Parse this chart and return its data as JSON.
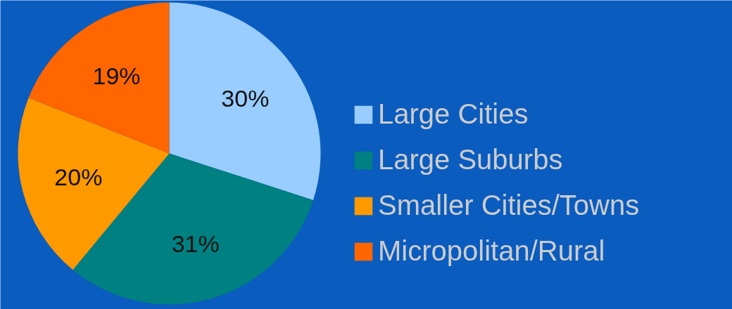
{
  "chart_data": {
    "type": "pie",
    "categories": [
      "Large Cities",
      "Large Suburbs",
      "Smaller Cities/Towns",
      "Micropolitan/Rural"
    ],
    "values": [
      30,
      31,
      20,
      19
    ],
    "colors": [
      "#99ccff",
      "#008080",
      "#ff9900",
      "#ff6600"
    ],
    "value_labels": [
      "30%",
      "31%",
      "20%",
      "19%"
    ],
    "legend": "right"
  }
}
